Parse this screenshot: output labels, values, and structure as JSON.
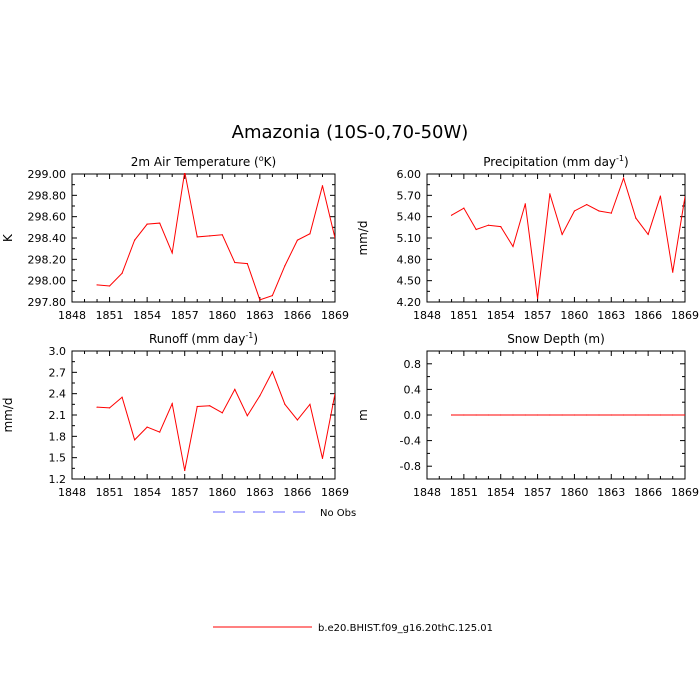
{
  "figure": {
    "title": "Amazonia (10S-0,70-50W)"
  },
  "chart_data": [
    {
      "type": "line",
      "title": "2m Air Temperature (",
      "title_sup": "o",
      "title_suffix": "K)",
      "ylabel": "K",
      "xlim": [
        1848,
        1869
      ],
      "ylim": [
        297.8,
        299.0
      ],
      "xticks": [
        1848,
        1851,
        1854,
        1857,
        1860,
        1863,
        1866,
        1869
      ],
      "xtick_labels": [
        "1848",
        "1851",
        "1854",
        "1857",
        "1860",
        "1863",
        "1866",
        "1869"
      ],
      "yticks": [
        297.8,
        298.0,
        298.2,
        298.4,
        298.6,
        298.8,
        299.0
      ],
      "ytick_labels": [
        "297.80",
        "298.00",
        "298.20",
        "298.40",
        "298.60",
        "298.80",
        "299.00"
      ],
      "grid": false,
      "x": [
        1850,
        1851,
        1852,
        1853,
        1854,
        1855,
        1856,
        1857,
        1858,
        1859,
        1860,
        1861,
        1862,
        1863,
        1864,
        1865,
        1866,
        1867,
        1868,
        1869
      ],
      "series": [
        {
          "values": [
            297.96,
            297.95,
            298.07,
            298.38,
            298.53,
            298.54,
            298.26,
            299.02,
            298.41,
            298.42,
            298.43,
            298.17,
            298.16,
            297.82,
            297.86,
            298.14,
            298.38,
            298.44,
            298.89,
            298.4
          ]
        }
      ]
    },
    {
      "type": "line",
      "title": "Precipitation (mm day",
      "title_sup": "-1",
      "title_suffix": ")",
      "ylabel": "mm/d",
      "xlim": [
        1848,
        1869
      ],
      "ylim": [
        4.2,
        6.0
      ],
      "xticks": [
        1848,
        1851,
        1854,
        1857,
        1860,
        1863,
        1866,
        1869
      ],
      "xtick_labels": [
        "1848",
        "1851",
        "1854",
        "1857",
        "1860",
        "1863",
        "1866",
        "1869"
      ],
      "yticks": [
        4.2,
        4.5,
        4.8,
        5.1,
        5.4,
        5.7,
        6.0
      ],
      "ytick_labels": [
        "4.20",
        "4.50",
        "4.80",
        "5.10",
        "5.40",
        "5.70",
        "6.00"
      ],
      "grid": false,
      "x": [
        1850,
        1851,
        1852,
        1853,
        1854,
        1855,
        1856,
        1857,
        1858,
        1859,
        1860,
        1861,
        1862,
        1863,
        1864,
        1865,
        1866,
        1867,
        1868,
        1869
      ],
      "series": [
        {
          "values": [
            5.42,
            5.52,
            5.22,
            5.28,
            5.26,
            4.98,
            5.58,
            4.25,
            5.72,
            5.15,
            5.48,
            5.57,
            5.48,
            5.45,
            5.94,
            5.38,
            5.15,
            5.69,
            4.62,
            5.68
          ]
        }
      ]
    },
    {
      "type": "line",
      "title": "Runoff (mm day",
      "title_sup": "-1",
      "title_suffix": ")",
      "ylabel": "mm/d",
      "xlim": [
        1848,
        1869
      ],
      "ylim": [
        1.2,
        3.0
      ],
      "xticks": [
        1848,
        1851,
        1854,
        1857,
        1860,
        1863,
        1866,
        1869
      ],
      "xtick_labels": [
        "1848",
        "1851",
        "1854",
        "1857",
        "1860",
        "1863",
        "1866",
        "1869"
      ],
      "yticks": [
        1.2,
        1.5,
        1.8,
        2.1,
        2.4,
        2.7,
        3.0
      ],
      "ytick_labels": [
        "1.2",
        "1.5",
        "1.8",
        "2.1",
        "2.4",
        "2.7",
        "3.0"
      ],
      "grid": false,
      "x": [
        1850,
        1851,
        1852,
        1853,
        1854,
        1855,
        1856,
        1857,
        1858,
        1859,
        1860,
        1861,
        1862,
        1863,
        1864,
        1865,
        1866,
        1867,
        1868,
        1869
      ],
      "series": [
        {
          "values": [
            2.21,
            2.2,
            2.35,
            1.75,
            1.93,
            1.86,
            2.26,
            1.32,
            2.22,
            2.23,
            2.13,
            2.46,
            2.09,
            2.37,
            2.71,
            2.25,
            2.03,
            2.25,
            1.49,
            2.4
          ]
        }
      ]
    },
    {
      "type": "line",
      "title": "Snow Depth (m)",
      "title_sup": "",
      "title_suffix": "",
      "ylabel": "m",
      "xlim": [
        1848,
        1869
      ],
      "ylim": [
        -1.0,
        1.0
      ],
      "xticks": [
        1848,
        1851,
        1854,
        1857,
        1860,
        1863,
        1866,
        1869
      ],
      "xtick_labels": [
        "1848",
        "1851",
        "1854",
        "1857",
        "1860",
        "1863",
        "1866",
        "1869"
      ],
      "yticks": [
        -0.8,
        -0.4,
        0.0,
        0.4,
        0.8
      ],
      "ytick_labels": [
        "-0.8",
        "-0.4",
        "0.0",
        "0.4",
        "0.8"
      ],
      "grid": false,
      "x": [
        1850,
        1851,
        1852,
        1853,
        1854,
        1855,
        1856,
        1857,
        1858,
        1859,
        1860,
        1861,
        1862,
        1863,
        1864,
        1865,
        1866,
        1867,
        1868,
        1869
      ],
      "series": [
        {
          "values": [
            0,
            0,
            0,
            0,
            0,
            0,
            0,
            0,
            0,
            0,
            0,
            0,
            0,
            0,
            0,
            0,
            0,
            0,
            0,
            0
          ]
        }
      ]
    }
  ],
  "legend": {
    "placement": "bottom-center",
    "entries": [
      {
        "label": "No Obs",
        "color": "#6666ff",
        "style": "dashed"
      },
      {
        "label": "b.e20.BHIST.f09_g16.20thC.125.01",
        "color": "#ff0000",
        "style": "solid"
      }
    ]
  },
  "colors": {
    "series_line": "#ff0000",
    "axis": "#000000"
  }
}
